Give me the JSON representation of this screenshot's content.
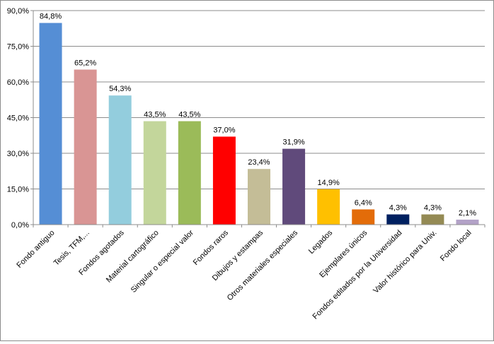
{
  "chart_data": {
    "type": "bar",
    "title": "",
    "xlabel": "",
    "ylabel": "",
    "ylim": [
      0,
      90
    ],
    "y_ticks": [
      "0,0%",
      "15,0%",
      "30,0%",
      "45,0%",
      "60,0%",
      "75,0%",
      "90,0%"
    ],
    "grid": true,
    "legend": "none",
    "categories": [
      "Fondo antiguo",
      "Tesis, TFM,...",
      "Fondos agotados",
      "Material cartográfico",
      "Singular o especial valor",
      "Fondos raros",
      "Dibujos y estampas",
      "Otros materiales especiales",
      "Legados",
      "Ejemplares únicos",
      "Fondos editados por la Universidad",
      "Valor histórico para Univ.",
      "Fondo local"
    ],
    "values": [
      84.8,
      65.2,
      54.3,
      43.5,
      43.5,
      37.0,
      23.4,
      31.9,
      14.9,
      6.4,
      4.3,
      4.3,
      2.1
    ],
    "data_labels": [
      "84,8%",
      "65,2%",
      "54,3%",
      "43,5%",
      "43,5%",
      "37,0%",
      "23,4%",
      "31,9%",
      "14,9%",
      "6,4%",
      "4,3%",
      "4,3%",
      "2,1%"
    ],
    "colors": [
      "#558ed5",
      "#d99594",
      "#93cddd",
      "#c3d69b",
      "#9bbb59",
      "#ff0000",
      "#c4bd97",
      "#604a7b",
      "#ffc000",
      "#e36c09",
      "#002060",
      "#948a54",
      "#b3a2c7"
    ]
  }
}
